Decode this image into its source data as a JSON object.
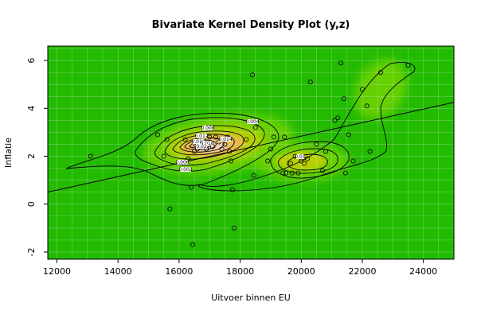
{
  "chart_data": {
    "type": "scatter",
    "title": "Bivariate Kernel Density Plot (y,z)",
    "xlabel": "Uitvoer binnen EU",
    "ylabel": "Inflatie",
    "xlim": [
      11700,
      25000
    ],
    "ylim": [
      -2.3,
      6.6
    ],
    "x_ticks": [
      12000,
      14000,
      16000,
      18000,
      20000,
      22000,
      24000
    ],
    "y_ticks": [
      -2,
      0,
      2,
      4,
      6
    ],
    "grid": true,
    "colors": {
      "background": "#22bb00",
      "grid": "#cfe8cc",
      "mid": "#66d000",
      "warm": "#b8d000",
      "orange": "#e8b848",
      "peak": "#f2d2b8",
      "line": "#000000"
    },
    "regression_line": {
      "x": [
        11700,
        25000
      ],
      "y": [
        0.5,
        4.25
      ]
    },
    "contour_labels": [
      "0.002",
      "0.004",
      "0.006",
      "0.008",
      "0.01",
      "0.012",
      "0.014",
      "0.016",
      "0.018",
      "0.02"
    ],
    "points": [
      {
        "x": 13100,
        "y": 2.0
      },
      {
        "x": 15300,
        "y": 2.9
      },
      {
        "x": 15500,
        "y": 2.0
      },
      {
        "x": 15600,
        "y": 2.7
      },
      {
        "x": 15700,
        "y": -0.2
      },
      {
        "x": 16200,
        "y": 2.7
      },
      {
        "x": 16300,
        "y": 1.9
      },
      {
        "x": 16400,
        "y": 0.7
      },
      {
        "x": 16450,
        "y": -1.7
      },
      {
        "x": 16500,
        "y": 2.2
      },
      {
        "x": 16600,
        "y": 2.3
      },
      {
        "x": 16800,
        "y": 2.7
      },
      {
        "x": 16900,
        "y": 2.3
      },
      {
        "x": 17000,
        "y": 2.8
      },
      {
        "x": 17100,
        "y": 2.4
      },
      {
        "x": 17200,
        "y": 2.8
      },
      {
        "x": 17300,
        "y": 2.6
      },
      {
        "x": 17400,
        "y": 2.3
      },
      {
        "x": 17500,
        "y": 2.5
      },
      {
        "x": 17600,
        "y": 2.8
      },
      {
        "x": 17650,
        "y": 2.2
      },
      {
        "x": 17700,
        "y": 1.8
      },
      {
        "x": 17750,
        "y": 0.6
      },
      {
        "x": 17800,
        "y": -1.0
      },
      {
        "x": 18200,
        "y": 2.7
      },
      {
        "x": 18400,
        "y": 5.4
      },
      {
        "x": 18450,
        "y": 1.2
      },
      {
        "x": 18500,
        "y": 3.2
      },
      {
        "x": 18900,
        "y": 1.8
      },
      {
        "x": 19000,
        "y": 2.3
      },
      {
        "x": 19100,
        "y": 2.8
      },
      {
        "x": 19400,
        "y": 1.3
      },
      {
        "x": 19450,
        "y": 2.8
      },
      {
        "x": 19500,
        "y": 1.3
      },
      {
        "x": 19650,
        "y": 1.7
      },
      {
        "x": 19700,
        "y": 1.3
      },
      {
        "x": 19800,
        "y": 2.0
      },
      {
        "x": 19900,
        "y": 1.3
      },
      {
        "x": 20000,
        "y": 1.8
      },
      {
        "x": 20100,
        "y": 1.7
      },
      {
        "x": 20200,
        "y": 1.9
      },
      {
        "x": 20300,
        "y": 5.1
      },
      {
        "x": 20500,
        "y": 2.5
      },
      {
        "x": 20700,
        "y": 1.4
      },
      {
        "x": 20800,
        "y": 2.2
      },
      {
        "x": 21100,
        "y": 3.5
      },
      {
        "x": 21200,
        "y": 3.6
      },
      {
        "x": 21300,
        "y": 5.9
      },
      {
        "x": 21400,
        "y": 4.4
      },
      {
        "x": 21450,
        "y": 1.3
      },
      {
        "x": 21550,
        "y": 2.9
      },
      {
        "x": 21700,
        "y": 1.8
      },
      {
        "x": 22000,
        "y": 4.8
      },
      {
        "x": 22150,
        "y": 4.1
      },
      {
        "x": 22250,
        "y": 2.2
      },
      {
        "x": 22600,
        "y": 5.5
      },
      {
        "x": 23500,
        "y": 5.8
      }
    ]
  }
}
